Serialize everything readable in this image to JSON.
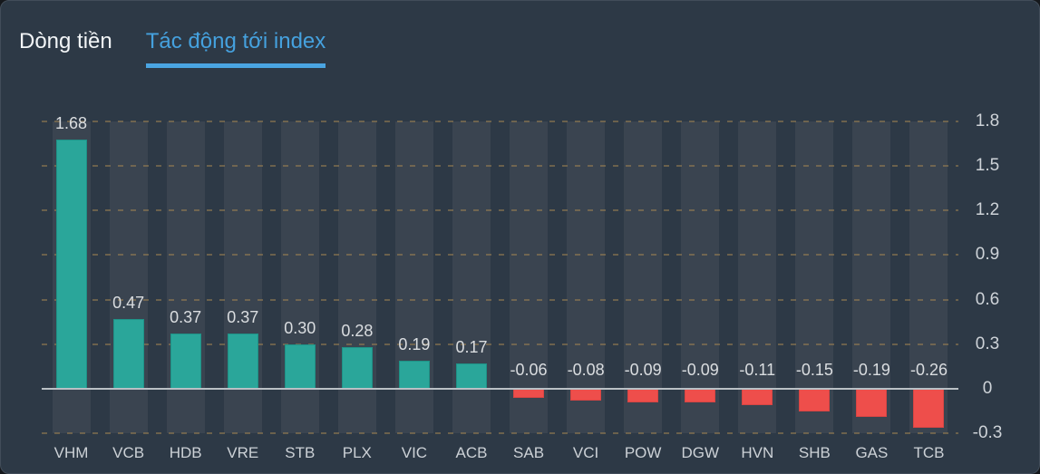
{
  "tabs": {
    "items": [
      {
        "label": "Dòng tiền",
        "active": false
      },
      {
        "label": "Tác động tới index",
        "active": true
      }
    ]
  },
  "colors": {
    "panel_bg": "#2d3946",
    "column_band": "#3a4450",
    "accent_blue": "#45a1de",
    "positive_bar": "#2aa69a",
    "negative_bar": "#ee4e4b",
    "zero_line": "#bac0c5",
    "grid_dash": "#9e8252"
  },
  "chart_data": {
    "type": "bar",
    "title": "Tác động tới index",
    "categories": [
      "VHM",
      "VCB",
      "HDB",
      "VRE",
      "STB",
      "PLX",
      "VIC",
      "ACB",
      "SAB",
      "VCI",
      "POW",
      "DGW",
      "HVN",
      "SHB",
      "GAS",
      "TCB"
    ],
    "values": [
      1.68,
      0.47,
      0.37,
      0.37,
      0.3,
      0.28,
      0.19,
      0.17,
      -0.06,
      -0.08,
      -0.09,
      -0.09,
      -0.11,
      -0.15,
      -0.19,
      -0.26
    ],
    "value_labels": [
      "1.68",
      "0.47",
      "0.37",
      "0.37",
      "0.30",
      "0.28",
      "0.19",
      "0.17",
      "-0.06",
      "-0.08",
      "-0.09",
      "-0.09",
      "-0.11",
      "-0.15",
      "-0.19",
      "-0.26"
    ],
    "yticks": [
      1.8,
      1.5,
      1.2,
      0.9,
      0.6,
      0.3,
      0,
      -0.3
    ],
    "ytick_labels": [
      "1.8",
      "1.5",
      "1.2",
      "0.9",
      "0.6",
      "0.3",
      "0",
      "-0.3"
    ],
    "ylim": [
      -0.3,
      1.8
    ],
    "xlabel": "",
    "ylabel": "",
    "y_axis_position": "right",
    "grid": "dashed horizontal",
    "legend": "none"
  }
}
